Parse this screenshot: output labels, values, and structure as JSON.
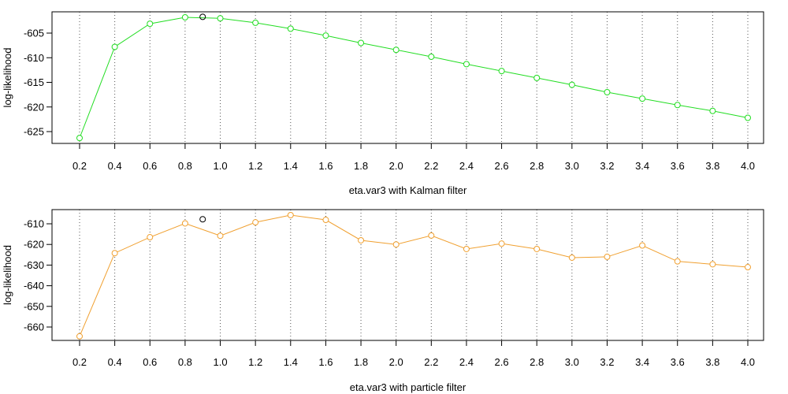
{
  "chart_data": [
    {
      "type": "line",
      "xlabel": "eta.var3 with Kalman filter",
      "ylabel": "log-likelihood",
      "x_ticks": [
        "0.2",
        "0.4",
        "0.6",
        "0.8",
        "1.0",
        "1.2",
        "1.4",
        "1.6",
        "1.8",
        "2.0",
        "2.2",
        "2.4",
        "2.6",
        "2.8",
        "3.0",
        "3.2",
        "3.4",
        "3.6",
        "3.8",
        "4.0"
      ],
      "y_ticks": [
        "-605",
        "-610",
        "-615",
        "-620",
        "-625"
      ],
      "xlim": [
        0.2,
        4.0
      ],
      "ylim": [
        -627,
        -601
      ],
      "grid": "vertical dotted lines at x ticks",
      "series": [
        {
          "color": "#22dd22",
          "marker": "open-circle",
          "x": [
            0.2,
            0.4,
            0.6,
            0.8,
            1.0,
            1.2,
            1.4,
            1.6,
            1.8,
            2.0,
            2.2,
            2.4,
            2.6,
            2.8,
            3.0,
            3.2,
            3.4,
            3.6,
            3.8,
            4.0
          ],
          "y": [
            -626.3,
            -607.8,
            -603.1,
            -601.8,
            -602.0,
            -602.9,
            -604.1,
            -605.5,
            -607.0,
            -608.4,
            -609.8,
            -611.3,
            -612.7,
            -614.1,
            -615.5,
            -617.0,
            -618.3,
            -619.6,
            -620.8,
            -622.2
          ]
        }
      ],
      "highlight": {
        "x": 0.9,
        "y": -601.7,
        "color": "#000000",
        "marker": "open-circle"
      }
    },
    {
      "type": "line",
      "xlabel": "eta.var3 with particle filter",
      "ylabel": "log-likelihood",
      "x_ticks": [
        "0.2",
        "0.4",
        "0.6",
        "0.8",
        "1.0",
        "1.2",
        "1.4",
        "1.6",
        "1.8",
        "2.0",
        "2.2",
        "2.4",
        "2.6",
        "2.8",
        "3.0",
        "3.2",
        "3.4",
        "3.6",
        "3.8",
        "4.0"
      ],
      "y_ticks": [
        "-610",
        "-620",
        "-630",
        "-640",
        "-650",
        "-660"
      ],
      "xlim": [
        0.2,
        4.0
      ],
      "ylim": [
        -665,
        -605
      ],
      "grid": "vertical dotted lines at x ticks",
      "series": [
        {
          "color": "#f0a030",
          "marker": "open-circle",
          "x": [
            0.2,
            0.4,
            0.6,
            0.8,
            1.0,
            1.2,
            1.4,
            1.6,
            1.8,
            2.0,
            2.2,
            2.4,
            2.6,
            2.8,
            3.0,
            3.2,
            3.4,
            3.6,
            3.8,
            4.0
          ],
          "y": [
            -664.5,
            -624.2,
            -616.5,
            -609.8,
            -615.8,
            -609.3,
            -605.8,
            -608.1,
            -618.0,
            -620.0,
            -615.7,
            -622.2,
            -619.6,
            -622.2,
            -626.4,
            -626.0,
            -620.5,
            -628.2,
            -629.6,
            -631.0
          ]
        }
      ],
      "highlight": {
        "x": 0.9,
        "y": -607.8,
        "color": "#000000",
        "marker": "open-circle"
      }
    }
  ]
}
